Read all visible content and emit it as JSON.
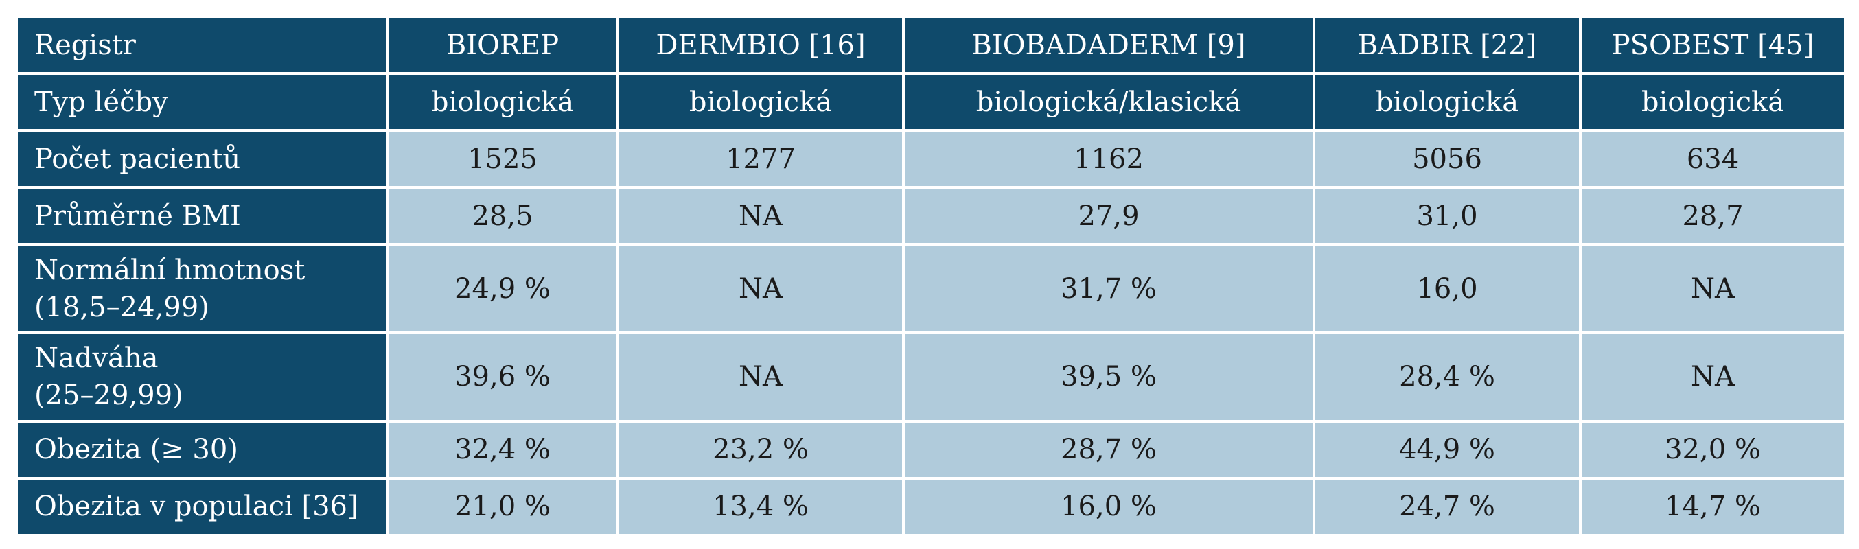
{
  "table": {
    "header": {
      "label": "Registr",
      "columns": [
        "BIOREP",
        "DERMBIO [16]",
        "BIOBADADERM [9]",
        "BADBIR [22]",
        "PSOBEST [45]"
      ]
    },
    "rows": [
      {
        "label_lines": [
          "Typ léčby"
        ],
        "style": "head",
        "values": [
          "biologická",
          "biologická",
          "biologická/klasická",
          "biologická",
          "biologická"
        ]
      },
      {
        "label_lines": [
          "Počet pacientů"
        ],
        "style": "cell",
        "values": [
          "1525",
          "1277",
          "1162",
          "5056",
          "634"
        ]
      },
      {
        "label_lines": [
          "Průměrné BMI"
        ],
        "style": "cell",
        "values": [
          "28,5",
          "NA",
          "27,9",
          "31,0",
          "28,7"
        ]
      },
      {
        "label_lines": [
          "Normální hmotnost",
          "(18,5–24,99)"
        ],
        "style": "cell",
        "values": [
          "24,9 %",
          "NA",
          "31,7 %",
          "16,0",
          "NA"
        ]
      },
      {
        "label_lines": [
          "Nadváha",
          "(25–29,99)"
        ],
        "style": "cell",
        "values": [
          "39,6 %",
          "NA",
          "39,5 %",
          "28,4 %",
          "NA"
        ]
      },
      {
        "label_lines": [
          "Obezita (≥ 30)"
        ],
        "style": "cell",
        "values": [
          "32,4 %",
          "23,2 %",
          "28,7 %",
          "44,9 %",
          "32,0 %"
        ]
      },
      {
        "label_lines": [
          "Obezita v populaci [36]"
        ],
        "style": "cell",
        "values": [
          "21,0 %",
          "13,4 %",
          "16,0 %",
          "24,7 %",
          "14,7 %"
        ]
      }
    ]
  }
}
